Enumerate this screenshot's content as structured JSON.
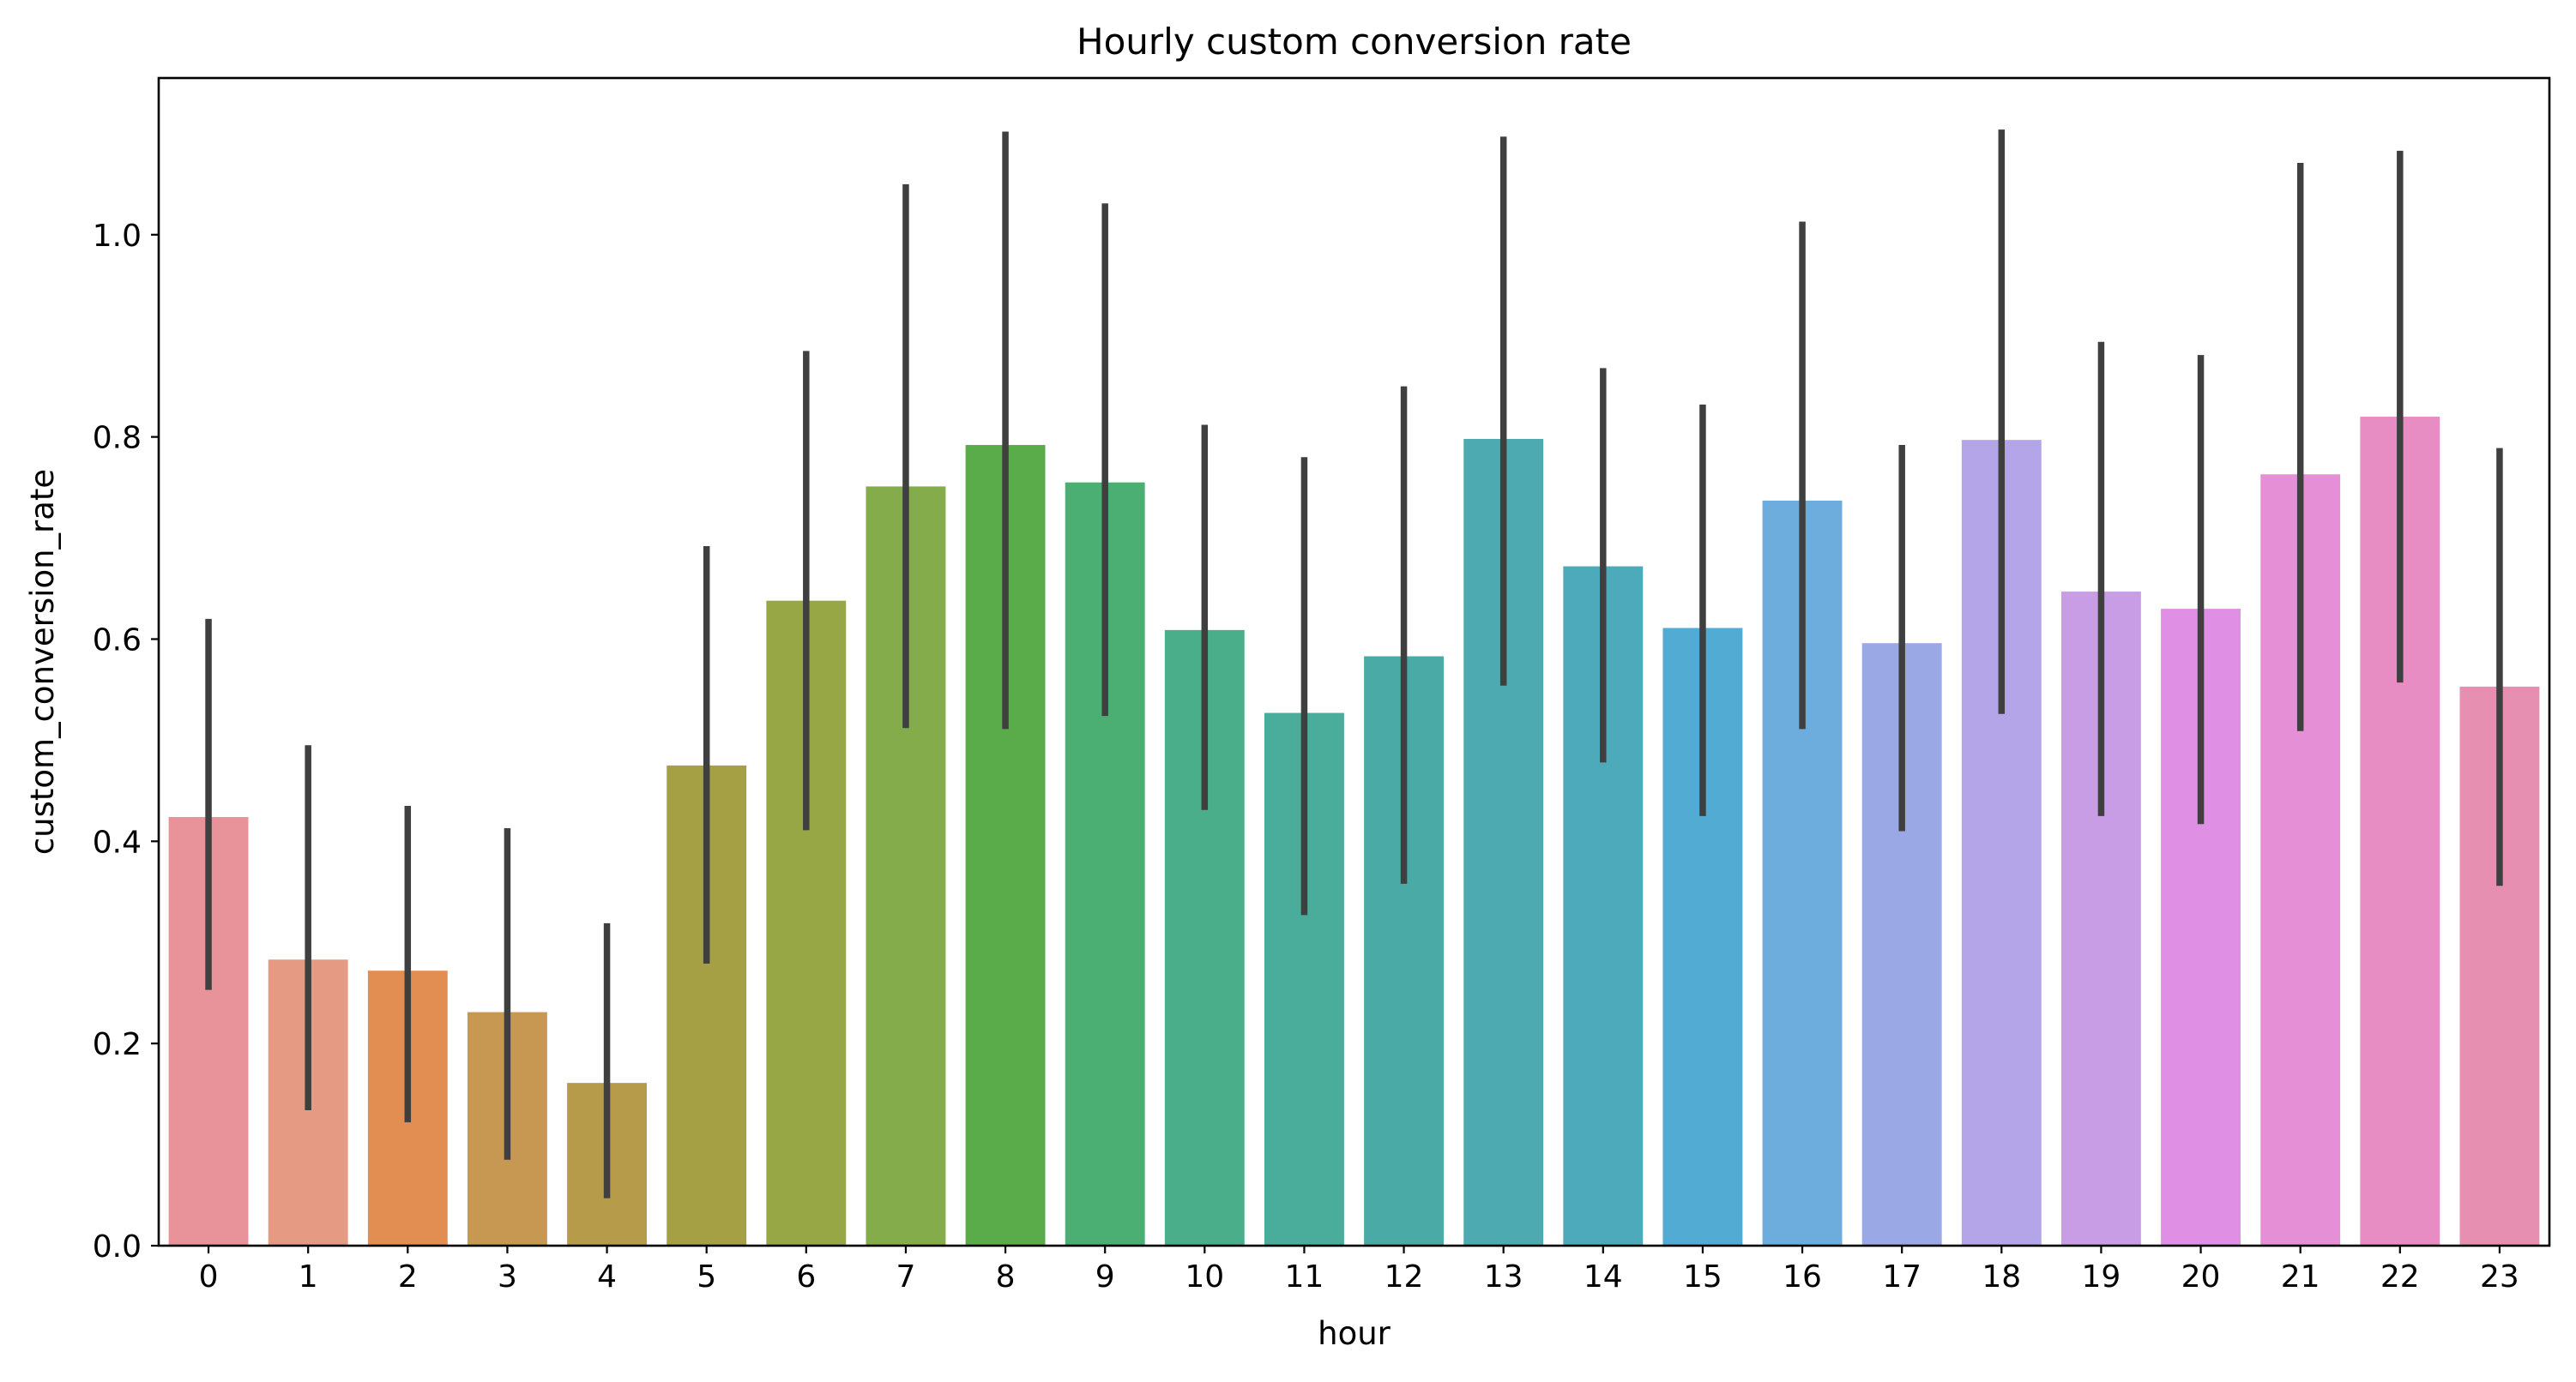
{
  "chart_data": {
    "type": "bar",
    "title": "Hourly custom conversion rate",
    "xlabel": "hour",
    "ylabel": "custom_conversion_rate",
    "categories": [
      "0",
      "1",
      "2",
      "3",
      "4",
      "5",
      "6",
      "7",
      "8",
      "9",
      "10",
      "11",
      "12",
      "13",
      "14",
      "15",
      "16",
      "17",
      "18",
      "19",
      "20",
      "21",
      "22",
      "23"
    ],
    "values": [
      0.424,
      0.283,
      0.272,
      0.231,
      0.161,
      0.475,
      0.638,
      0.751,
      0.792,
      0.755,
      0.609,
      0.527,
      0.583,
      0.798,
      0.672,
      0.611,
      0.737,
      0.596,
      0.797,
      0.647,
      0.63,
      0.763,
      0.82,
      0.553
    ],
    "error_low": [
      0.253,
      0.134,
      0.122,
      0.085,
      0.047,
      0.279,
      0.411,
      0.512,
      0.511,
      0.524,
      0.431,
      0.327,
      0.358,
      0.554,
      0.478,
      0.425,
      0.511,
      0.41,
      0.526,
      0.425,
      0.417,
      0.509,
      0.557,
      0.356
    ],
    "error_high": [
      0.62,
      0.495,
      0.435,
      0.413,
      0.319,
      0.692,
      0.885,
      1.05,
      1.102,
      1.031,
      0.812,
      0.78,
      0.85,
      1.097,
      0.868,
      0.832,
      1.013,
      0.792,
      1.104,
      0.894,
      0.881,
      1.071,
      1.083,
      0.789
    ],
    "ylim": [
      0.0,
      1.155
    ],
    "yticks": [
      "0.0",
      "0.2",
      "0.4",
      "0.6",
      "0.8",
      "1.0"
    ],
    "grid": false,
    "legend": "none",
    "colors": [
      "#e8929a",
      "#e59a83",
      "#e28e52",
      "#c69852",
      "#b69c4a",
      "#a5a043",
      "#98a745",
      "#84ac4a",
      "#5aac4a",
      "#4bae72",
      "#4aae8a",
      "#4aac9a",
      "#4aaba6",
      "#4caab0",
      "#4daabb",
      "#51abd3",
      "#6dadde",
      "#9ba8e6",
      "#b4a4e8",
      "#c99de6",
      "#df8fe4",
      "#e58fd6",
      "#e88dc4",
      "#e68fb0"
    ],
    "error_color": "#3f3f3f"
  }
}
